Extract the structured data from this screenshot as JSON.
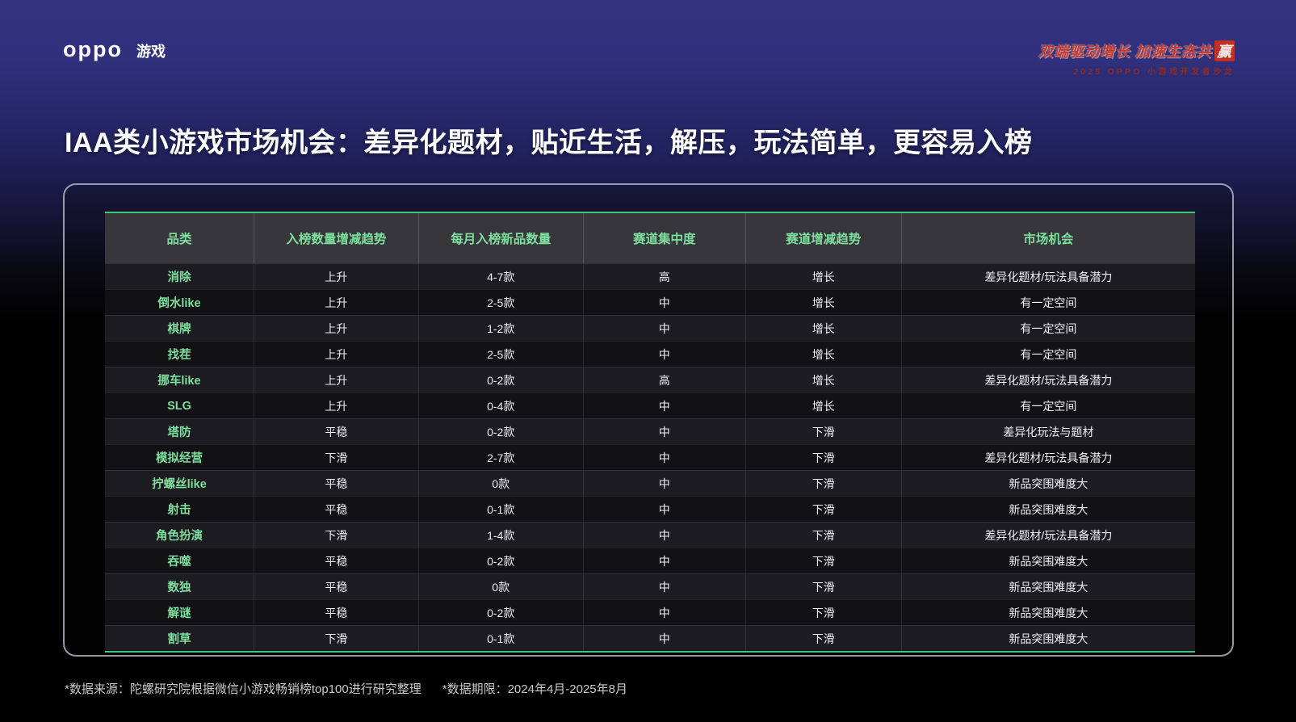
{
  "brand": {
    "logo_text": "OPPO",
    "product": "游戏"
  },
  "event_badge": {
    "slogan_main": "双端驱动增长 加速生态共",
    "slogan_stamp": "赢",
    "subtitle": "2025 OPPO 小游戏开发者沙龙"
  },
  "page_title": "IAA类小游戏市场机会：差异化题材，贴近生活，解压，玩法简单，更容易入榜",
  "table": {
    "headers": [
      "品类",
      "入榜数量增减趋势",
      "每月入榜新品数量",
      "赛道集中度",
      "赛道增减趋势",
      "市场机会"
    ],
    "rows": [
      [
        "消除",
        "上升",
        "4-7款",
        "高",
        "增长",
        "差异化题材/玩法具备潜力"
      ],
      [
        "倒水like",
        "上升",
        "2-5款",
        "中",
        "增长",
        "有一定空间"
      ],
      [
        "棋牌",
        "上升",
        "1-2款",
        "中",
        "增长",
        "有一定空间"
      ],
      [
        "找茬",
        "上升",
        "2-5款",
        "中",
        "增长",
        "有一定空间"
      ],
      [
        "挪车like",
        "上升",
        "0-2款",
        "高",
        "增长",
        "差异化题材/玩法具备潜力"
      ],
      [
        "SLG",
        "上升",
        "0-4款",
        "中",
        "增长",
        "有一定空间"
      ],
      [
        "塔防",
        "平稳",
        "0-2款",
        "中",
        "下滑",
        "差异化玩法与题材"
      ],
      [
        "模拟经营",
        "下滑",
        "2-7款",
        "中",
        "下滑",
        "差异化题材/玩法具备潜力"
      ],
      [
        "拧螺丝like",
        "平稳",
        "0款",
        "中",
        "下滑",
        "新品突围难度大"
      ],
      [
        "射击",
        "平稳",
        "0-1款",
        "中",
        "下滑",
        "新品突围难度大"
      ],
      [
        "角色扮演",
        "下滑",
        "1-4款",
        "中",
        "下滑",
        "差异化题材/玩法具备潜力"
      ],
      [
        "吞噬",
        "平稳",
        "0-2款",
        "中",
        "下滑",
        "新品突围难度大"
      ],
      [
        "数独",
        "平稳",
        "0款",
        "中",
        "下滑",
        "新品突围难度大"
      ],
      [
        "解谜",
        "平稳",
        "0-2款",
        "中",
        "下滑",
        "新品突围难度大"
      ],
      [
        "割草",
        "下滑",
        "0-1款",
        "中",
        "下滑",
        "新品突围难度大"
      ]
    ]
  },
  "footnotes": {
    "source": "*数据来源：陀螺研究院根据微信小游戏畅销榜top100进行研究整理",
    "period": "*数据期限：2024年4月-2025年8月"
  },
  "colors": {
    "accent_green_text": "#7ddf9e",
    "table_line_green": "#3fc476",
    "badge_red": "#c93a2e",
    "bg_top_purple": "#32327f",
    "header_row_bg": "#37373b",
    "row_odd_bg": "#1d1d21",
    "row_even_bg": "#121215"
  }
}
